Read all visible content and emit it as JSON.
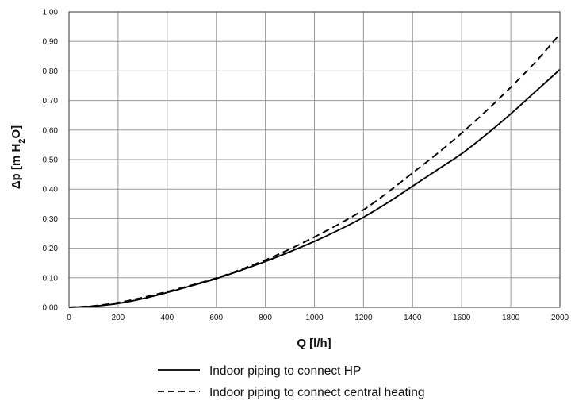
{
  "chart_data": {
    "type": "line",
    "xlabel": "Q [l/h]",
    "ylabel": {
      "prefix": "Δp [m H",
      "subscript": "2",
      "suffix": "O]"
    },
    "xlim": [
      0,
      2000
    ],
    "ylim": [
      0,
      1.0
    ],
    "x_ticks": [
      0,
      200,
      400,
      600,
      800,
      1000,
      1200,
      1400,
      1600,
      1800,
      2000
    ],
    "x_tick_labels": [
      "0",
      "200",
      "400",
      "600",
      "800",
      "1000",
      "1200",
      "1400",
      "1600",
      "1800",
      "2000"
    ],
    "y_ticks": [
      0,
      0.1,
      0.2,
      0.3,
      0.4,
      0.5,
      0.6,
      0.7,
      0.8,
      0.9,
      1.0
    ],
    "y_tick_labels": [
      "0,00",
      "0,10",
      "0,20",
      "0,30",
      "0,40",
      "0,50",
      "0,60",
      "0,70",
      "0,80",
      "0,90",
      "1,00"
    ],
    "grid": true,
    "legend_position": "bottom",
    "series": [
      {
        "name": "Indoor piping to connect HP",
        "style": "solid",
        "color": "#000000",
        "x": [
          0,
          100,
          200,
          300,
          400,
          500,
          600,
          700,
          800,
          900,
          1000,
          1100,
          1200,
          1300,
          1400,
          1500,
          1600,
          1700,
          1800,
          1900,
          2000
        ],
        "y": [
          0.0,
          0.004,
          0.013,
          0.029,
          0.05,
          0.073,
          0.097,
          0.125,
          0.155,
          0.188,
          0.223,
          0.262,
          0.305,
          0.355,
          0.41,
          0.465,
          0.52,
          0.585,
          0.655,
          0.73,
          0.805
        ]
      },
      {
        "name": "Indoor piping to connect central heating",
        "style": "dashed",
        "color": "#000000",
        "x": [
          0,
          100,
          200,
          300,
          400,
          500,
          600,
          700,
          800,
          900,
          1000,
          1100,
          1200,
          1300,
          1400,
          1500,
          1600,
          1700,
          1800,
          1900,
          2000
        ],
        "y": [
          0.0,
          0.005,
          0.016,
          0.033,
          0.053,
          0.075,
          0.099,
          0.128,
          0.16,
          0.197,
          0.238,
          0.282,
          0.33,
          0.39,
          0.455,
          0.52,
          0.59,
          0.665,
          0.745,
          0.83,
          0.925
        ]
      }
    ]
  }
}
